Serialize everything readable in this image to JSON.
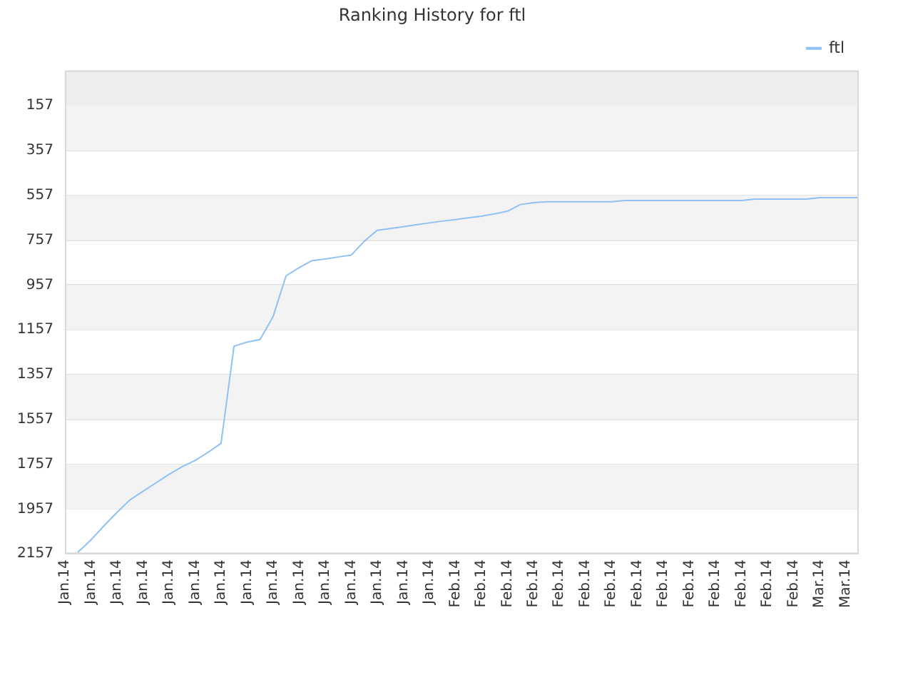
{
  "chart_data": {
    "type": "line",
    "title": "Ranking History for ftl",
    "categories": [
      "Jan.14",
      null,
      "Jan.14",
      null,
      "Jan.14",
      null,
      "Jan.14",
      null,
      "Jan.14",
      null,
      "Jan.14",
      null,
      "Jan.14",
      null,
      "Jan.14",
      null,
      "Jan.14",
      null,
      "Jan.14",
      null,
      "Jan.14",
      null,
      "Jan.14",
      null,
      "Jan.14",
      null,
      "Jan.14",
      null,
      "Jan.14",
      null,
      "Feb.14",
      null,
      "Feb.14",
      null,
      "Feb.14",
      null,
      "Feb.14",
      null,
      "Feb.14",
      null,
      "Feb.14",
      null,
      "Feb.14",
      null,
      "Feb.14",
      null,
      "Feb.14",
      null,
      "Feb.14",
      null,
      "Feb.14",
      null,
      "Feb.14",
      null,
      "Feb.14",
      null,
      "Feb.14",
      null,
      "Mar.14",
      null,
      "Mar.14",
      null
    ],
    "series": [
      {
        "name": "ftl",
        "color": "#8fc1f3",
        "values": [
          null,
          2150,
          2095,
          2032,
          1972,
          1916,
          1878,
          1840,
          1802,
          1768,
          1740,
          1704,
          1664,
          1230,
          1212,
          1200,
          1098,
          916,
          880,
          848,
          841,
          832,
          824,
          762,
          713,
          705,
          697,
          688,
          680,
          672,
          665,
          657,
          650,
          640,
          628,
          598,
          590,
          586,
          586,
          586,
          586,
          586,
          586,
          580,
          580,
          580,
          580,
          580,
          580,
          580,
          580,
          580,
          580,
          574,
          574,
          574,
          574,
          574,
          567,
          567,
          567,
          567
        ]
      }
    ],
    "ylim": [
      2157,
      0
    ],
    "yticks": [
      157,
      357,
      557,
      757,
      957,
      1157,
      1357,
      1557,
      1757,
      1957,
      2157
    ],
    "grid": "y",
    "legend": "top right",
    "marker": "none",
    "line_style": "solid",
    "bands": [
      {
        "axis": "y",
        "from": 0,
        "to": 157,
        "color": "#eeeeee"
      },
      {
        "axis": "y",
        "from": 157,
        "to": 357,
        "color": "#f3f3f3"
      },
      {
        "axis": "y",
        "from": 557,
        "to": 757,
        "color": "#f3f3f3"
      },
      {
        "axis": "y",
        "from": 957,
        "to": 1157,
        "color": "#f3f3f3"
      },
      {
        "axis": "y",
        "from": 1357,
        "to": 1557,
        "color": "#f3f3f3"
      },
      {
        "axis": "y",
        "from": 1757,
        "to": 1957,
        "color": "#f3f3f3"
      }
    ]
  }
}
